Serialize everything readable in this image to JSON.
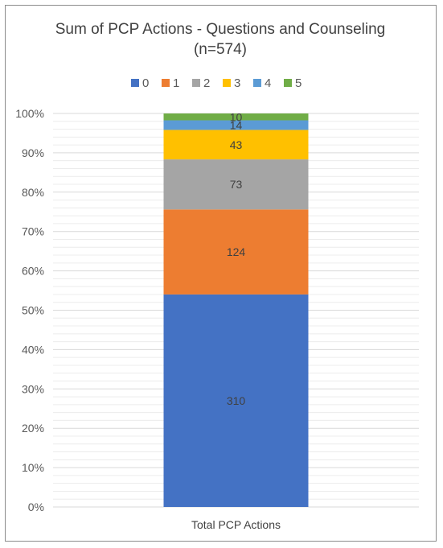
{
  "chart_data": {
    "type": "bar",
    "stacked": "percent",
    "title": "Sum of PCP Actions - Questions and Counseling",
    "subtitle": "(n=574)",
    "categories": [
      "Total PCP Actions"
    ],
    "series": [
      {
        "name": "0",
        "values": [
          310
        ],
        "color": "#4472C4"
      },
      {
        "name": "1",
        "values": [
          124
        ],
        "color": "#ED7D31"
      },
      {
        "name": "2",
        "values": [
          73
        ],
        "color": "#A5A5A5"
      },
      {
        "name": "3",
        "values": [
          43
        ],
        "color": "#FFC000"
      },
      {
        "name": "4",
        "values": [
          14
        ],
        "color": "#5B9BD5"
      },
      {
        "name": "5",
        "values": [
          10
        ],
        "color": "#70AD47"
      }
    ],
    "yticks": [
      "0%",
      "10%",
      "20%",
      "30%",
      "40%",
      "50%",
      "60%",
      "70%",
      "80%",
      "90%",
      "100%"
    ],
    "ylim": [
      0,
      100
    ],
    "grid": true,
    "legend_position": "top"
  }
}
